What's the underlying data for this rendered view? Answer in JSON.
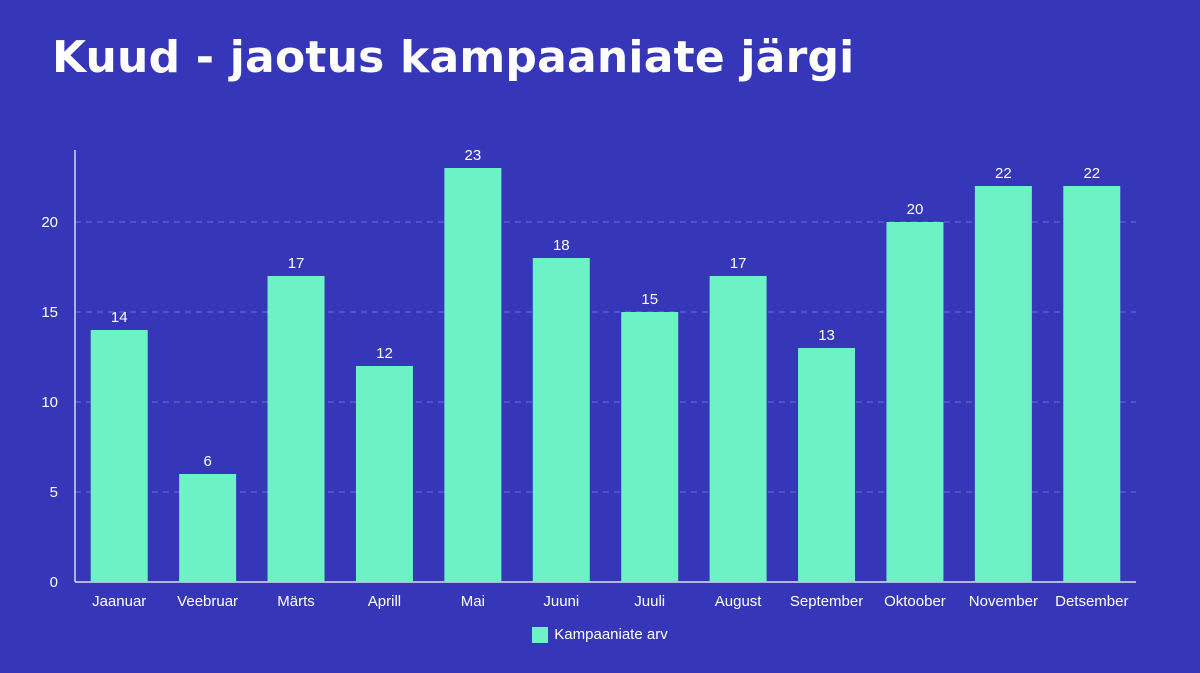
{
  "header": {
    "title": "Kuud - jaotus kampaaniate järgi"
  },
  "colors": {
    "background": "#3536b8",
    "bar": "#6cf2c4",
    "axis": "#ffffff",
    "grid": "#6a6fd8",
    "text": "#ffffff"
  },
  "chart_data": {
    "type": "bar",
    "title": "Kuud - jaotus kampaaniate järgi",
    "xlabel": "",
    "ylabel": "",
    "categories": [
      "Jaanuar",
      "Veebruar",
      "Märts",
      "Aprill",
      "Mai",
      "Juuni",
      "Juuli",
      "August",
      "September",
      "Oktoober",
      "November",
      "Detsember"
    ],
    "series": [
      {
        "name": "Kampaaniate arv",
        "values": [
          14,
          6,
          17,
          12,
          23,
          18,
          15,
          17,
          13,
          20,
          22,
          22
        ]
      }
    ],
    "ylim": [
      0,
      24
    ],
    "yticks": [
      0,
      5,
      10,
      15,
      20
    ],
    "grid": true,
    "grid_style": "dashed",
    "data_labels": true,
    "legend_position": "bottom-center"
  }
}
